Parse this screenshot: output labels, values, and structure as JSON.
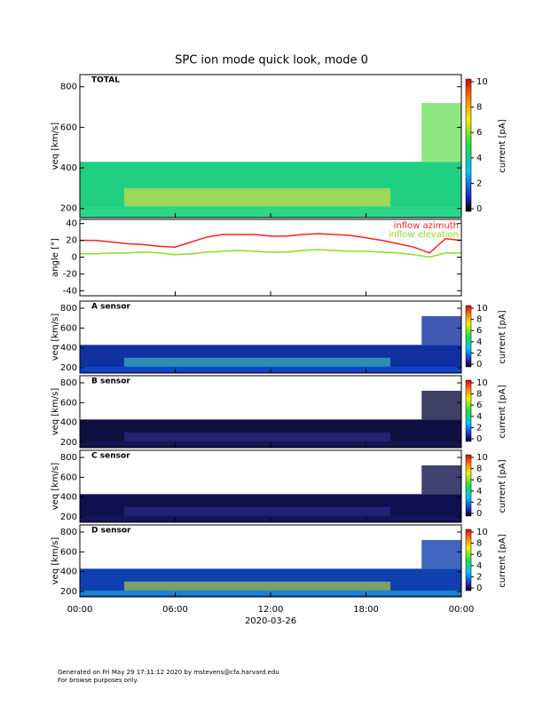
{
  "title": "SPC ion mode quick look, mode 0",
  "footer": [
    "Generated on Fri May 29 17:11:12 2020 by mstevens@cfa.harvard.edu",
    "For browse purposes only."
  ],
  "chart_data": [
    {
      "type": "spectrogram",
      "label": "TOTAL",
      "ylabel": "veq [km/s]",
      "ylim": [
        155,
        860
      ],
      "yticks": [
        200,
        400,
        600,
        800
      ],
      "colorbar": {
        "label": "current [pA]",
        "clim": [
          0,
          10
        ],
        "ticks": [
          0,
          2,
          4,
          6,
          8,
          10
        ]
      }
    },
    {
      "type": "line",
      "ylabel": "angle [°]",
      "ylim": [
        -46,
        45
      ],
      "yticks": [
        -40,
        -20,
        0,
        20,
        40
      ],
      "x": [
        0,
        1,
        2,
        3,
        4,
        5,
        6,
        7,
        8,
        9,
        10,
        11,
        12,
        13,
        14,
        15,
        16,
        17,
        18,
        19,
        20,
        21,
        22,
        23,
        24
      ],
      "series": [
        {
          "name": "inflow azimuth",
          "color": "#ff2020",
          "values": [
            20,
            20,
            18,
            16,
            15,
            13,
            12,
            18,
            24,
            27,
            27,
            27,
            25,
            25,
            27,
            28,
            27,
            26,
            23,
            20,
            16,
            12,
            5,
            22,
            20
          ]
        },
        {
          "name": "inflow elevation",
          "color": "#88dd22",
          "values": [
            4,
            4,
            5,
            5,
            6,
            5,
            3,
            4,
            6,
            7,
            8,
            7,
            6,
            6,
            8,
            9,
            8,
            7,
            7,
            6,
            5,
            3,
            0,
            5,
            5
          ]
        }
      ]
    },
    {
      "type": "spectrogram",
      "label": "A sensor",
      "ylabel": "veq [km/s]",
      "ylim": [
        146,
        872
      ],
      "yticks": [
        200,
        400,
        600,
        800
      ],
      "colorbar": {
        "label": "current [pA]",
        "clim": [
          0,
          10
        ],
        "ticks": [
          0,
          2,
          4,
          6,
          8,
          10
        ]
      }
    },
    {
      "type": "spectrogram",
      "label": "B sensor",
      "ylabel": "veq [km/s]",
      "ylim": [
        146,
        872
      ],
      "yticks": [
        200,
        400,
        600,
        800
      ],
      "colorbar": {
        "label": "current [pA]",
        "clim": [
          0,
          10
        ],
        "ticks": [
          0,
          2,
          4,
          6,
          8,
          10
        ]
      }
    },
    {
      "type": "spectrogram",
      "label": "C sensor",
      "ylabel": "veq [km/s]",
      "ylim": [
        146,
        872
      ],
      "yticks": [
        200,
        400,
        600,
        800
      ],
      "colorbar": {
        "label": "current [pA]",
        "clim": [
          0,
          10
        ],
        "ticks": [
          0,
          2,
          4,
          6,
          8,
          10
        ]
      }
    },
    {
      "type": "spectrogram",
      "label": "D sensor",
      "ylabel": "veq [km/s]",
      "ylim": [
        146,
        872
      ],
      "yticks": [
        200,
        400,
        600,
        800
      ],
      "colorbar": {
        "label": "current [pA]",
        "clim": [
          0,
          10
        ],
        "ticks": [
          0,
          2,
          4,
          6,
          8,
          10
        ]
      },
      "xlabel": "2020-03-26",
      "xlim": [
        0,
        24
      ],
      "xticks": [
        {
          "value": 0,
          "label": "00:00"
        },
        {
          "value": 6,
          "label": "06:00"
        },
        {
          "value": 12,
          "label": "12:00"
        },
        {
          "value": 18,
          "label": "18:00"
        },
        {
          "value": 24,
          "label": "00:00"
        }
      ]
    }
  ]
}
